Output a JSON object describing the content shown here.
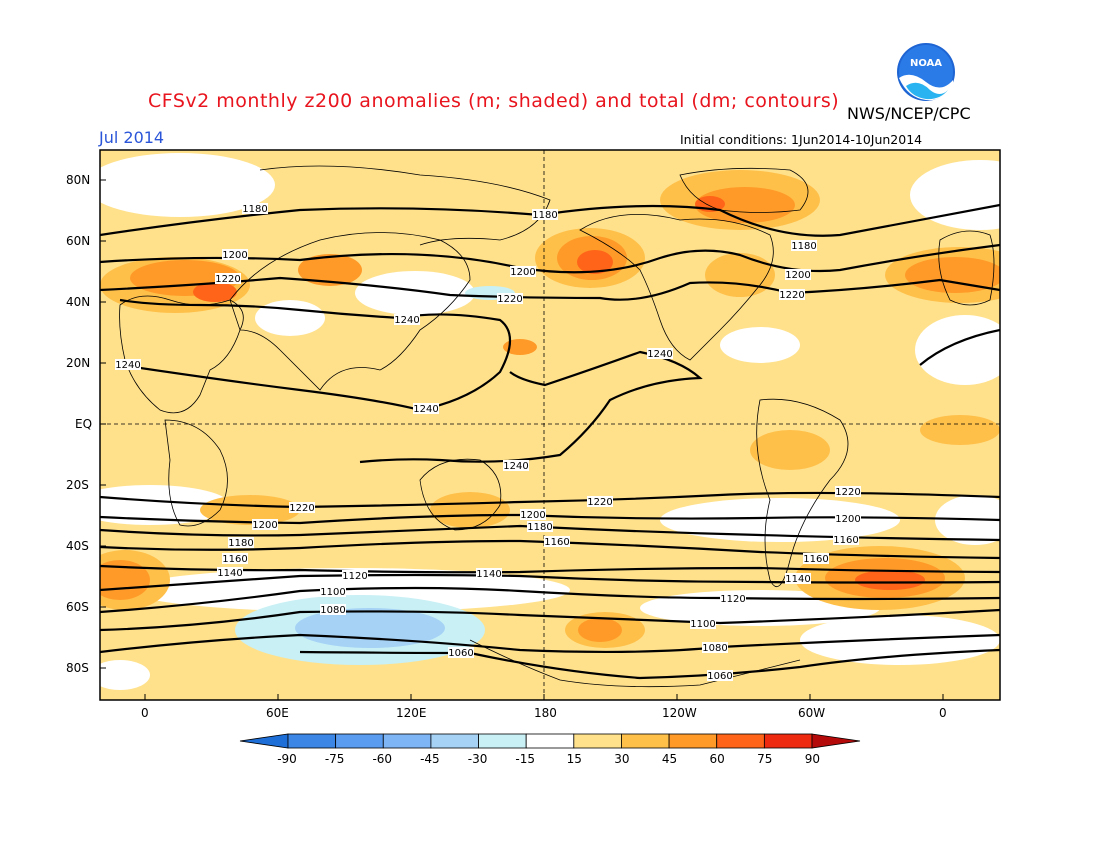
{
  "title": "CFSv2 monthly z200 anomalies (m; shaded) and total (dm; contours)",
  "month": "Jul 2014",
  "agency": "NWS/NCEP/CPC",
  "initial_conditions": "Initial conditions: 1Jun2014-10Jun2014",
  "logo_text": "NOAA",
  "lat_labels": [
    "80N",
    "60N",
    "40N",
    "20N",
    "EQ",
    "20S",
    "40S",
    "60S",
    "80S"
  ],
  "lon_labels": [
    "0",
    "60E",
    "120E",
    "180",
    "120W",
    "60W",
    "0"
  ],
  "colorbar": {
    "labels": [
      "-90",
      "-75",
      "-60",
      "-45",
      "-30",
      "-15",
      "15",
      "30",
      "45",
      "60",
      "75",
      "90"
    ],
    "colors": [
      "#1e6ed8",
      "#3c86e6",
      "#5a9cf0",
      "#7eb5f5",
      "#a5d2f5",
      "#c8f0f5",
      "#ffffff",
      "#ffe18c",
      "#ffc04a",
      "#ff9a28",
      "#ff6418",
      "#ee2a10",
      "#b40a0a"
    ]
  },
  "contour_labels": [
    "1060",
    "1080",
    "1100",
    "1120",
    "1140",
    "1160",
    "1180",
    "1200",
    "1220",
    "1240"
  ],
  "colors": {
    "title": "#e8141e",
    "month": "#2a55d8",
    "base_anomaly": "#ffe18c"
  }
}
